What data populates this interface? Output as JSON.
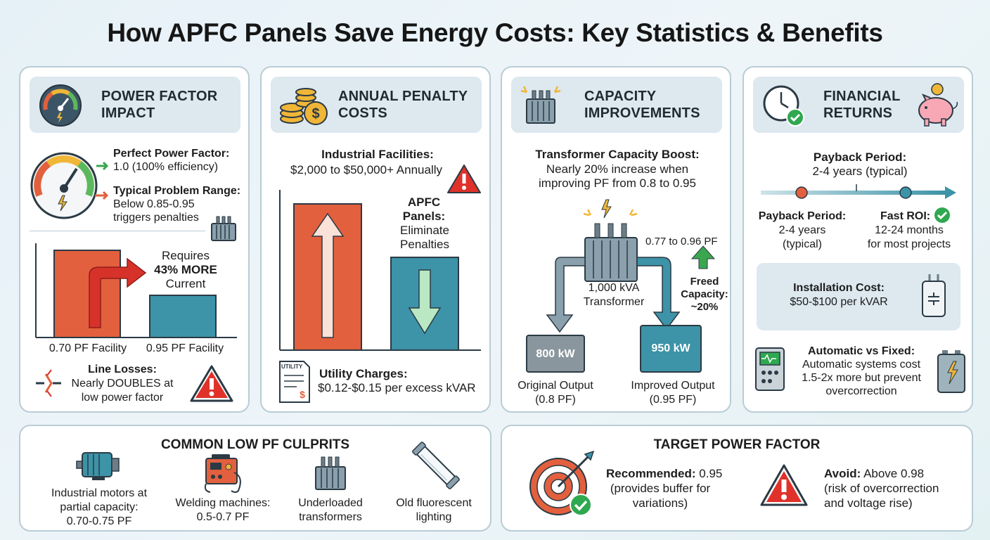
{
  "title": "How APFC Panels Save Energy Costs: Key Statistics & Benefits",
  "power_factor": {
    "heading_1": "POWER FACTOR",
    "heading_2": "IMPACT",
    "perfect_label": "Perfect Power Factor:",
    "perfect_value": "1.0 (100% efficiency)",
    "problem_label": "Typical Problem Range:",
    "problem_line1": "Below 0.85-0.95",
    "problem_line2": "triggers penalties",
    "requires": "Requires",
    "more_current": "43% MORE",
    "current": "Current",
    "bar1_label": "0.70 PF Facility",
    "bar2_label": "0.95 PF Facility",
    "line_losses_label": "Line Losses:",
    "line_losses_line1": "Nearly DOUBLES at",
    "line_losses_line2": "low power factor"
  },
  "penalty": {
    "heading_1": "ANNUAL PENALTY",
    "heading_2": "COSTS",
    "facilities_label": "Industrial Facilities:",
    "facilities_value": "$2,000 to $50,000+ Annually",
    "apfc_1": "APFC",
    "apfc_2": "Panels:",
    "apfc_3": "Eliminate",
    "apfc_4": "Penalties",
    "utility_icon_text": "UTILITY",
    "utility_label": "Utility Charges:",
    "utility_value": "$0.12-$0.15 per excess kVAR"
  },
  "capacity": {
    "heading_1": "CAPACITY",
    "heading_2": "IMPROVEMENTS",
    "boost_label": "Transformer Capacity Boost:",
    "boost_line1": "Nearly 20% increase when",
    "boost_line2": "improving PF from 0.8 to 0.95",
    "pf_range": "0.77 to 0.96 PF",
    "transformer_1": "1,000 kVA",
    "transformer_2": "Transformer",
    "freed_1": "Freed",
    "freed_2": "Capacity:",
    "freed_3": "~20%",
    "box1": "800 kW",
    "box2": "950 kW",
    "out1_1": "Original Output",
    "out1_2": "(0.8 PF)",
    "out2_1": "Improved Output",
    "out2_2": "(0.95 PF)"
  },
  "financial": {
    "heading_1": "FINANCIAL",
    "heading_2": "RETURNS",
    "payback_top_label": "Payback Period:",
    "payback_top_value": "2-4 years (typical)",
    "payback_label": "Payback Period:",
    "payback_1": "2-4 years",
    "payback_2": "(typical)",
    "roi_label": "Fast ROI:",
    "roi_1": "12-24 months",
    "roi_2": "for most projects",
    "install_label": "Installation Cost:",
    "install_value": "$50-$100 per kVAR",
    "auto_label": "Automatic vs Fixed:",
    "auto_1": "Automatic systems cost",
    "auto_2": "1.5-2x more but prevent",
    "auto_3": "overcorrection"
  },
  "culprits": {
    "heading": "COMMON LOW PF CULPRITS",
    "motors_1": "Industrial motors at",
    "motors_2": "partial capacity:",
    "motors_3": "0.70-0.75 PF",
    "welding_1": "Welding machines:",
    "welding_2": "0.5-0.7 PF",
    "transformers_1": "Underloaded",
    "transformers_2": "transformers",
    "lighting_1": "Old fluorescent",
    "lighting_2": "lighting"
  },
  "target": {
    "heading": "TARGET POWER FACTOR",
    "rec_label": "Recommended:",
    "rec_value": "0.95",
    "rec_2": "(provides buffer for",
    "rec_3": "variations)",
    "avoid_label": "Avoid:",
    "avoid_value": "Above 0.98",
    "avoid_2": "(risk of overcorrection",
    "avoid_3": "and voltage rise)"
  },
  "icons": [
    "gauge-icon",
    "coins-icon",
    "transformer-icon",
    "clock-icon",
    "piggy-bank-icon",
    "warning-icon",
    "target-icon",
    "motor-icon",
    "welder-icon",
    "fluorescent-tube-icon",
    "capacitor-icon",
    "controller-icon",
    "battery-icon",
    "utility-bill-icon",
    "lightning-icon",
    "check-icon"
  ],
  "colors": {
    "orange": "#e2603e",
    "teal": "#3d93a7",
    "header_bg": "#dde8ef",
    "border": "#b9ccd6",
    "red_alert": "#e0322a",
    "green_check": "#2fa84f"
  }
}
